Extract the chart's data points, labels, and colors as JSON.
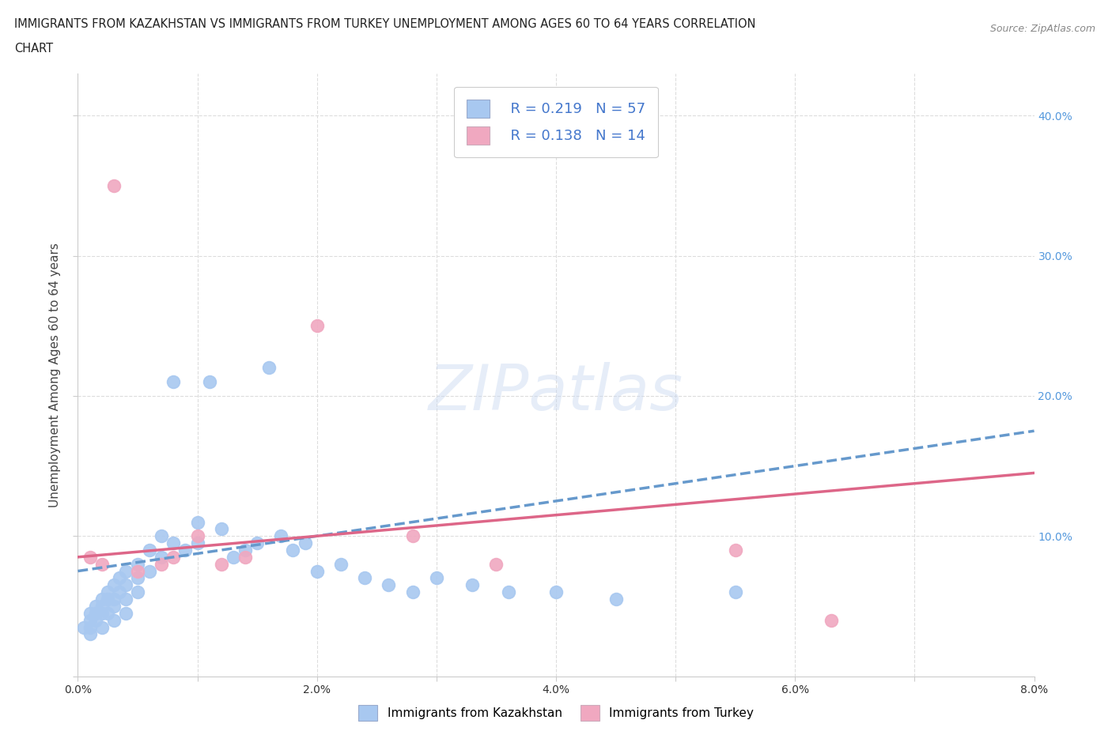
{
  "title_line1": "IMMIGRANTS FROM KAZAKHSTAN VS IMMIGRANTS FROM TURKEY UNEMPLOYMENT AMONG AGES 60 TO 64 YEARS CORRELATION",
  "title_line2": "CHART",
  "source": "Source: ZipAtlas.com",
  "ylabel": "Unemployment Among Ages 60 to 64 years",
  "xlim": [
    0.0,
    0.08
  ],
  "ylim": [
    0.0,
    0.43
  ],
  "kazakhstan_color": "#a8c8f0",
  "turkey_color": "#f0a8c0",
  "kaz_line_color": "#6699cc",
  "tur_line_color": "#dd6688",
  "kaz_line_x0": 0.0,
  "kaz_line_y0": 0.075,
  "kaz_line_x1": 0.08,
  "kaz_line_y1": 0.175,
  "tur_line_x0": 0.0,
  "tur_line_y0": 0.085,
  "tur_line_x1": 0.08,
  "tur_line_y1": 0.145,
  "kazakhstan_x": [
    0.0005,
    0.001,
    0.001,
    0.001,
    0.001,
    0.0015,
    0.0015,
    0.0015,
    0.002,
    0.002,
    0.002,
    0.002,
    0.0025,
    0.0025,
    0.0025,
    0.003,
    0.003,
    0.003,
    0.003,
    0.0035,
    0.0035,
    0.004,
    0.004,
    0.004,
    0.004,
    0.005,
    0.005,
    0.005,
    0.006,
    0.006,
    0.007,
    0.007,
    0.008,
    0.008,
    0.009,
    0.01,
    0.01,
    0.011,
    0.012,
    0.013,
    0.014,
    0.015,
    0.016,
    0.017,
    0.018,
    0.019,
    0.02,
    0.022,
    0.024,
    0.026,
    0.028,
    0.03,
    0.033,
    0.036,
    0.04,
    0.045,
    0.055
  ],
  "kazakhstan_y": [
    0.035,
    0.04,
    0.045,
    0.035,
    0.03,
    0.05,
    0.045,
    0.04,
    0.055,
    0.05,
    0.045,
    0.035,
    0.06,
    0.055,
    0.045,
    0.065,
    0.055,
    0.05,
    0.04,
    0.07,
    0.06,
    0.075,
    0.065,
    0.055,
    0.045,
    0.08,
    0.07,
    0.06,
    0.09,
    0.075,
    0.1,
    0.085,
    0.21,
    0.095,
    0.09,
    0.11,
    0.095,
    0.21,
    0.105,
    0.085,
    0.09,
    0.095,
    0.22,
    0.1,
    0.09,
    0.095,
    0.075,
    0.08,
    0.07,
    0.065,
    0.06,
    0.07,
    0.065,
    0.06,
    0.06,
    0.055,
    0.06
  ],
  "turkey_x": [
    0.001,
    0.002,
    0.003,
    0.005,
    0.007,
    0.008,
    0.01,
    0.012,
    0.014,
    0.02,
    0.028,
    0.035,
    0.055,
    0.063
  ],
  "turkey_y": [
    0.085,
    0.08,
    0.35,
    0.075,
    0.08,
    0.085,
    0.1,
    0.08,
    0.085,
    0.25,
    0.1,
    0.08,
    0.09,
    0.04
  ],
  "watermark": "ZIPatlas",
  "background_color": "#ffffff",
  "grid_color": "#dddddd"
}
